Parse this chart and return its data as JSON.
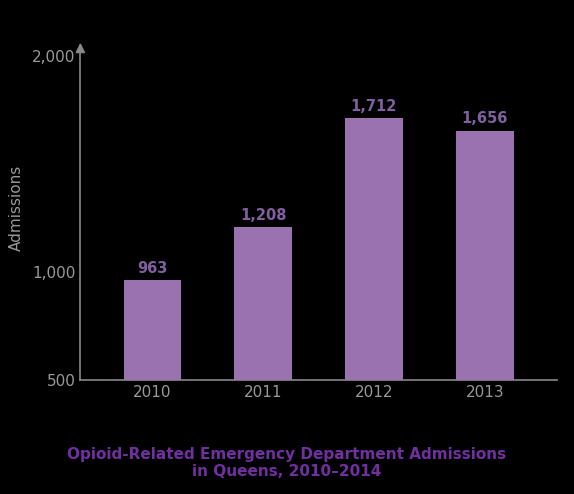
{
  "categories": [
    "2010",
    "2011",
    "2012",
    "2013"
  ],
  "values": [
    963,
    1208,
    1712,
    1656
  ],
  "bar_color": "#9b72b0",
  "bar_labels": [
    "963",
    "1,208",
    "1,712",
    "1,656"
  ],
  "ylabel": "Admissions",
  "ylim": [
    500,
    2100
  ],
  "yticks": [
    500,
    1000,
    2000
  ],
  "ytick_labels": [
    "500",
    "1,000",
    "2,000"
  ],
  "title_line1": "Opioid-Related Emergency Department Admissions",
  "title_line2": "in Queens, 2010–2014",
  "title_color": "#7030a0",
  "bar_label_color": "#8060a0",
  "background_color": "#000000",
  "text_color": "#999999",
  "bar_width": 0.52,
  "axis_color": "#888888",
  "arrow_color": "#888888"
}
